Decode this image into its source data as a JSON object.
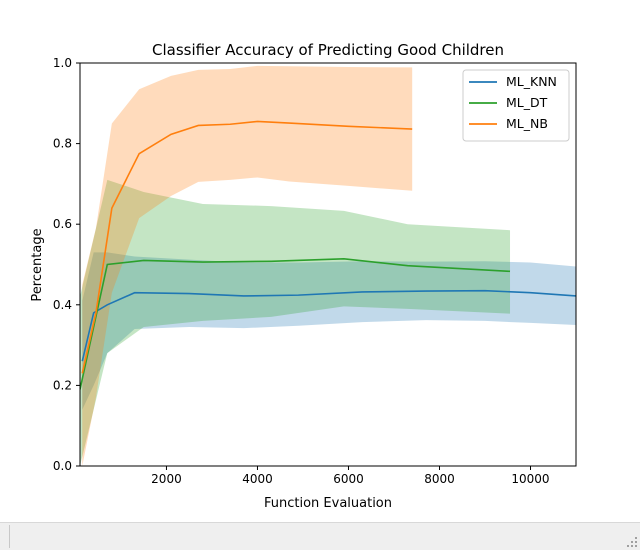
{
  "chart_data": {
    "type": "line",
    "title": "Classifier Accuracy of Predicting Good Children",
    "xlabel": "Function Evaluation",
    "ylabel": "Percentage",
    "xlim": [
      100,
      11000
    ],
    "ylim": [
      0.0,
      1.0
    ],
    "xticks": [
      2000,
      4000,
      6000,
      8000,
      10000
    ],
    "xtick_labels": [
      "2000",
      "4000",
      "6000",
      "8000",
      "10000"
    ],
    "yticks": [
      0.0,
      0.2,
      0.4,
      0.6,
      0.8,
      1.0
    ],
    "ytick_labels": [
      "0.0",
      "0.2",
      "0.4",
      "0.6",
      "0.8",
      "1.0"
    ],
    "grid": false,
    "legend_position": "top-right",
    "series": [
      {
        "name": "ML_KNN",
        "color": "#1f77b4",
        "x": [
          150,
          400,
          700,
          1300,
          2500,
          3700,
          4900,
          6300,
          7700,
          9000,
          10000,
          11000
        ],
        "y": [
          0.26,
          0.38,
          0.4,
          0.43,
          0.428,
          0.422,
          0.424,
          0.432,
          0.434,
          0.435,
          0.43,
          0.422
        ],
        "lower": [
          0.14,
          0.2,
          0.28,
          0.34,
          0.345,
          0.342,
          0.348,
          0.357,
          0.362,
          0.36,
          0.355,
          0.35
        ],
        "upper": [
          0.41,
          0.53,
          0.53,
          0.52,
          0.512,
          0.505,
          0.505,
          0.508,
          0.507,
          0.508,
          0.505,
          0.495
        ]
      },
      {
        "name": "ML_DT",
        "color": "#2ca02c",
        "x": [
          100,
          700,
          1500,
          2800,
          4300,
          5900,
          7300,
          9550
        ],
        "y": [
          0.19,
          0.5,
          0.51,
          0.506,
          0.508,
          0.514,
          0.497,
          0.483
        ],
        "lower": [
          0.0,
          0.28,
          0.345,
          0.36,
          0.37,
          0.396,
          0.39,
          0.378
        ],
        "upper": [
          0.42,
          0.71,
          0.68,
          0.65,
          0.645,
          0.633,
          0.6,
          0.585
        ]
      },
      {
        "name": "ML_NB",
        "color": "#ff7f0e",
        "x": [
          150,
          450,
          800,
          1400,
          2100,
          2700,
          3400,
          4000,
          4700,
          6000,
          7400
        ],
        "y": [
          0.23,
          0.38,
          0.64,
          0.775,
          0.823,
          0.845,
          0.848,
          0.855,
          0.851,
          0.843,
          0.836
        ],
        "lower": [
          0.0,
          0.17,
          0.43,
          0.615,
          0.67,
          0.705,
          0.71,
          0.716,
          0.706,
          0.695,
          0.683
        ],
        "upper": [
          0.45,
          0.59,
          0.85,
          0.935,
          0.968,
          0.983,
          0.985,
          0.993,
          0.992,
          0.99,
          0.989
        ]
      }
    ]
  }
}
